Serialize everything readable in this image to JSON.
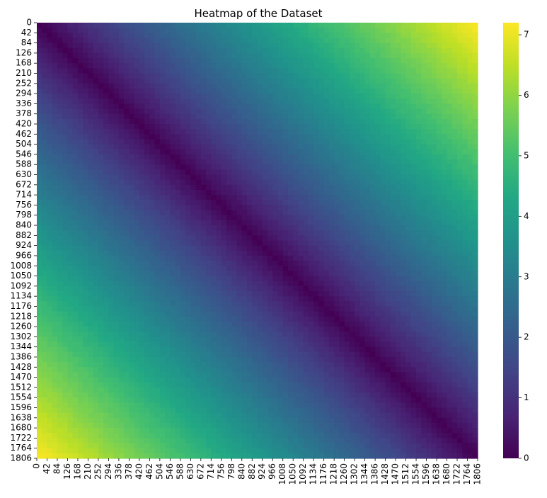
{
  "chart_data": {
    "type": "heatmap",
    "title": "Heatmap of the Dataset",
    "xlabel": "",
    "ylabel": "",
    "x_range": [
      0,
      1806
    ],
    "y_range": [
      0,
      1806
    ],
    "x_ticks": [
      0,
      42,
      84,
      126,
      168,
      210,
      252,
      294,
      336,
      378,
      420,
      462,
      504,
      546,
      588,
      630,
      672,
      714,
      756,
      798,
      840,
      882,
      924,
      966,
      1008,
      1050,
      1092,
      1134,
      1176,
      1218,
      1260,
      1302,
      1344,
      1386,
      1428,
      1470,
      1512,
      1554,
      1596,
      1638,
      1680,
      1722,
      1764,
      1806
    ],
    "y_ticks": [
      0,
      42,
      84,
      126,
      168,
      210,
      252,
      294,
      336,
      378,
      420,
      462,
      504,
      546,
      588,
      630,
      672,
      714,
      756,
      798,
      840,
      882,
      924,
      966,
      1008,
      1050,
      1092,
      1134,
      1176,
      1218,
      1260,
      1302,
      1344,
      1386,
      1428,
      1470,
      1512,
      1554,
      1596,
      1638,
      1680,
      1722,
      1764,
      1806
    ],
    "x_tick_rotation": 90,
    "colormap": "viridis",
    "value_range": [
      0,
      7.2
    ],
    "colorbar": {
      "ticks": [
        0,
        1,
        2,
        3,
        4,
        5,
        6,
        7
      ],
      "placement": "right"
    },
    "grid": false,
    "description_of_pattern": "",
    "values_function": "distance_from_diagonal",
    "max_value_corner": 7.2
  }
}
